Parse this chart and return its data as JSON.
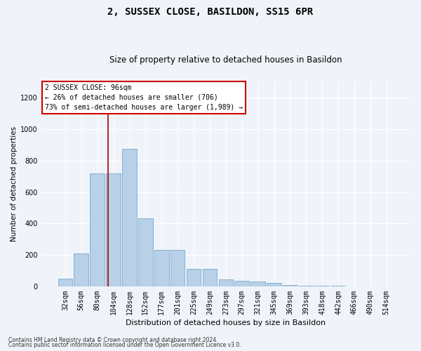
{
  "title1": "2, SUSSEX CLOSE, BASILDON, SS15 6PR",
  "title2": "Size of property relative to detached houses in Basildon",
  "xlabel": "Distribution of detached houses by size in Basildon",
  "ylabel": "Number of detached properties",
  "categories": [
    "32sqm",
    "56sqm",
    "80sqm",
    "104sqm",
    "128sqm",
    "152sqm",
    "177sqm",
    "201sqm",
    "225sqm",
    "249sqm",
    "273sqm",
    "297sqm",
    "321sqm",
    "345sqm",
    "369sqm",
    "393sqm",
    "418sqm",
    "442sqm",
    "466sqm",
    "490sqm",
    "514sqm"
  ],
  "values": [
    50,
    210,
    720,
    720,
    875,
    435,
    230,
    230,
    110,
    110,
    45,
    35,
    30,
    20,
    8,
    5,
    3,
    2,
    1,
    1,
    1
  ],
  "bar_color": "#b8d0e8",
  "bar_edge_color": "#7aaac8",
  "vline_color": "#aa0000",
  "annotation_text": "2 SUSSEX CLOSE: 96sqm\n← 26% of detached houses are smaller (706)\n73% of semi-detached houses are larger (1,989) →",
  "annotation_box_color": "#ffffff",
  "annotation_box_edge": "#cc0000",
  "ylim": [
    0,
    1300
  ],
  "yticks": [
    0,
    200,
    400,
    600,
    800,
    1000,
    1200
  ],
  "footer1": "Contains HM Land Registry data © Crown copyright and database right 2024.",
  "footer2": "Contains public sector information licensed under the Open Government Licence v3.0.",
  "bg_color": "#f0f4fa",
  "plot_bg_color": "#f0f4fa",
  "title1_fontsize": 10,
  "title2_fontsize": 8.5,
  "xlabel_fontsize": 8,
  "ylabel_fontsize": 7.5,
  "tick_fontsize": 7,
  "annot_fontsize": 7,
  "footer_fontsize": 5.5
}
